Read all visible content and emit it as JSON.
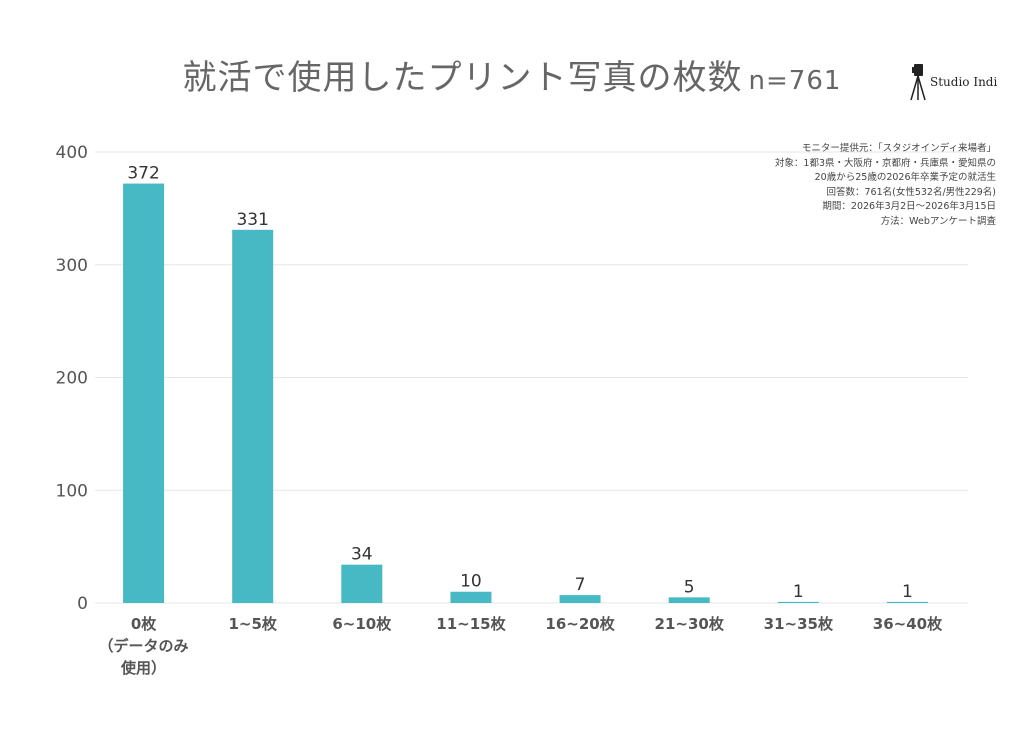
{
  "title": "就活で使用したプリント写真の枚数",
  "title_n": "n=761",
  "logo_text": "Studio Indi",
  "notes": [
    "モニター提供元：「スタジオインディ来場者」",
    "対象：1都3県・大阪府・京都府・兵庫県・愛知県の",
    "20歳から25歳の2026年卒業予定の就活生",
    "回答数：761名(女性532名/男性229名)",
    "期間：2026年3月2日〜2026年3月15日",
    "方法：Webアンケート調査"
  ],
  "chart_data": {
    "type": "bar",
    "title": "就活で使用したプリント写真の枚数",
    "categories": [
      [
        "0枚",
        "（データのみ",
        "使用）"
      ],
      [
        "1~5枚"
      ],
      [
        "6~10枚"
      ],
      [
        "11~15枚"
      ],
      [
        "16~20枚"
      ],
      [
        "21~30枚"
      ],
      [
        "31~35枚"
      ],
      [
        "36~40枚"
      ]
    ],
    "values": [
      372,
      331,
      34,
      10,
      7,
      5,
      1,
      1
    ],
    "ylim": [
      0,
      400
    ],
    "yticks": [
      0,
      100,
      200,
      300,
      400
    ],
    "grid": true,
    "bar_color": "#47b9c4",
    "grid_color": "#e6e6e6"
  }
}
